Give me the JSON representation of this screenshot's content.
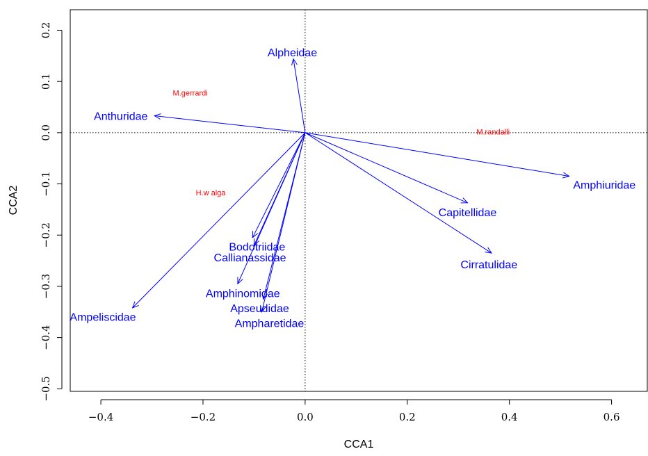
{
  "chart_data": {
    "type": "scatter",
    "subtype": "cca-biplot",
    "title": "",
    "xlabel": "CCA1",
    "ylabel": "CCA2",
    "xlim": [
      -0.46,
      0.67
    ],
    "ylim": [
      -0.505,
      0.24
    ],
    "x_ticks": [
      "-0.4",
      "-0.2",
      "0.0",
      "0.2",
      "0.4",
      "0.6"
    ],
    "x_tick_values": [
      -0.4,
      -0.2,
      0.0,
      0.2,
      0.4,
      0.6
    ],
    "y_ticks": [
      "-0.5",
      "-0.4",
      "-0.3",
      "-0.2",
      "-0.1",
      "0.0",
      "0.1",
      "0.2"
    ],
    "y_tick_values": [
      -0.5,
      -0.4,
      -0.3,
      -0.2,
      -0.1,
      0.0,
      0.1,
      0.2
    ],
    "reference_lines": {
      "x": 0,
      "y": 0,
      "style": "dotted"
    },
    "grid": false,
    "vector_color": "#0000ff",
    "site_color": "#ff0000",
    "species_vectors": [
      {
        "name": "Alpheidae",
        "x": -0.023,
        "y": 0.144,
        "label_x": -0.025,
        "label_y": 0.157
      },
      {
        "name": "Anthuridae",
        "x": -0.295,
        "y": 0.033,
        "label_x": -0.361,
        "label_y": 0.033
      },
      {
        "name": "Amphiuridae",
        "x": 0.517,
        "y": -0.085,
        "label_x": 0.586,
        "label_y": -0.101
      },
      {
        "name": "Capitellidae",
        "x": 0.318,
        "y": -0.137,
        "label_x": 0.318,
        "label_y": -0.155
      },
      {
        "name": "Cirratulidae",
        "x": 0.365,
        "y": -0.235,
        "label_x": 0.36,
        "label_y": -0.257
      },
      {
        "name": "Bodotriidae",
        "x": -0.103,
        "y": -0.205,
        "label_x": -0.094,
        "label_y": -0.222
      },
      {
        "name": "Callianassidae",
        "x": -0.1,
        "y": -0.22,
        "label_x": -0.108,
        "label_y": -0.243
      },
      {
        "name": "Amphinomidae",
        "x": -0.132,
        "y": -0.295,
        "label_x": -0.122,
        "label_y": -0.313
      },
      {
        "name": "Apseudidae",
        "x": -0.082,
        "y": -0.325,
        "label_x": -0.089,
        "label_y": -0.342
      },
      {
        "name": "Ampharetidae",
        "x": -0.085,
        "y": -0.35,
        "label_x": -0.07,
        "label_y": -0.371
      },
      {
        "name": "Ampeliscidae",
        "x": -0.338,
        "y": -0.342,
        "label_x": -0.396,
        "label_y": -0.359
      }
    ],
    "sites": [
      {
        "name": "M.gerrardi",
        "x": -0.225,
        "y": 0.078
      },
      {
        "name": "M.randalli",
        "x": 0.368,
        "y": 0.002
      },
      {
        "name": "H.w alga",
        "x": -0.185,
        "y": -0.117
      }
    ]
  }
}
